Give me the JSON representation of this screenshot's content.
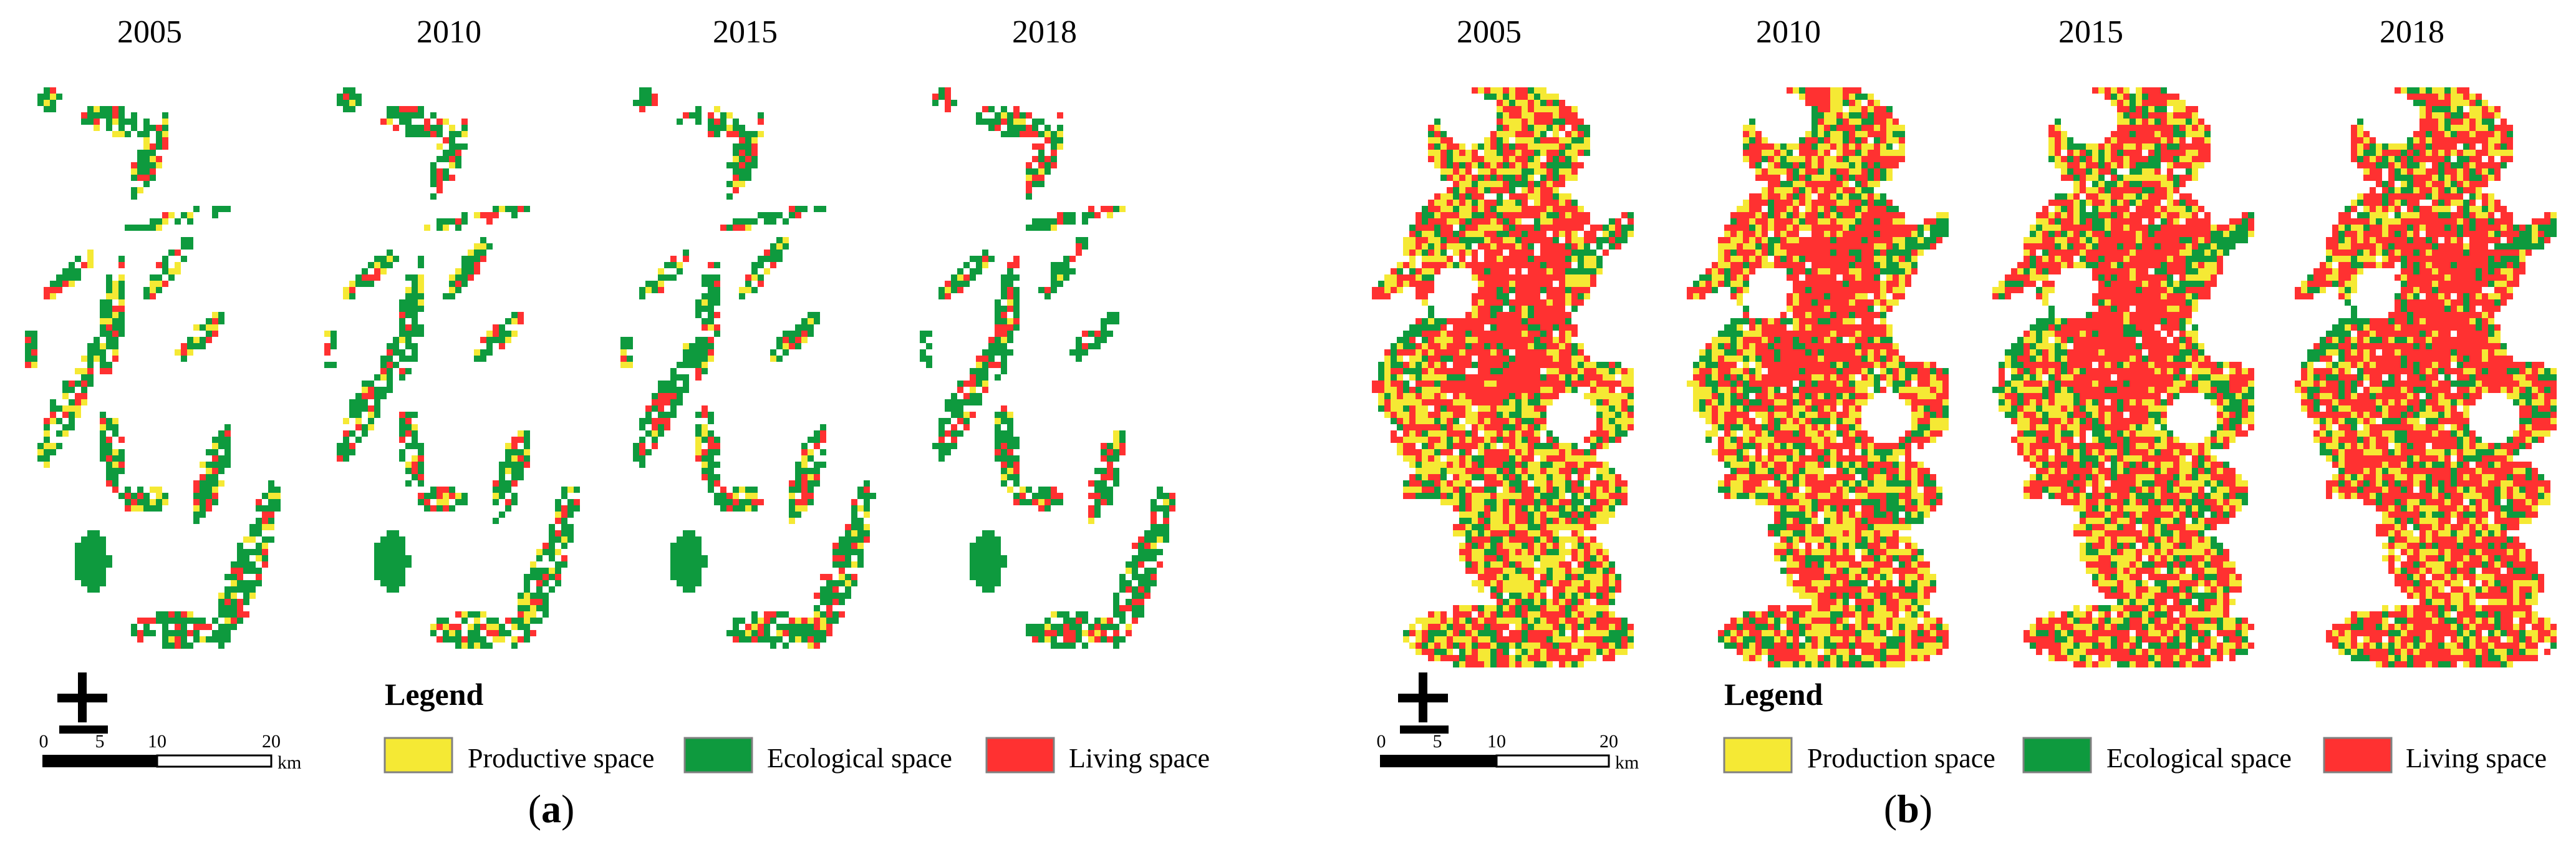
{
  "years": [
    "2005",
    "2010",
    "2015",
    "2018"
  ],
  "panels": [
    {
      "letter": "a",
      "legend_title": "Legend",
      "legend": [
        "Productive space",
        "Ecological space",
        "Living space"
      ],
      "scale": {
        "ticks": [
          "0",
          "5",
          "10",
          "20"
        ],
        "unit": "km"
      }
    },
    {
      "letter": "b",
      "legend_title": "Legend",
      "legend": [
        "Production space",
        "Ecological space",
        "Living space"
      ],
      "scale": {
        "ticks": [
          "0",
          "5",
          "10",
          "20"
        ],
        "unit": "km"
      }
    }
  ],
  "colors": {
    "production": "#f5e934",
    "ecological": "#0e9a3e",
    "living": "#ff3131",
    "legend_border": "#808080"
  },
  "icons": {
    "north_arrow": "north-arrow-icon"
  }
}
